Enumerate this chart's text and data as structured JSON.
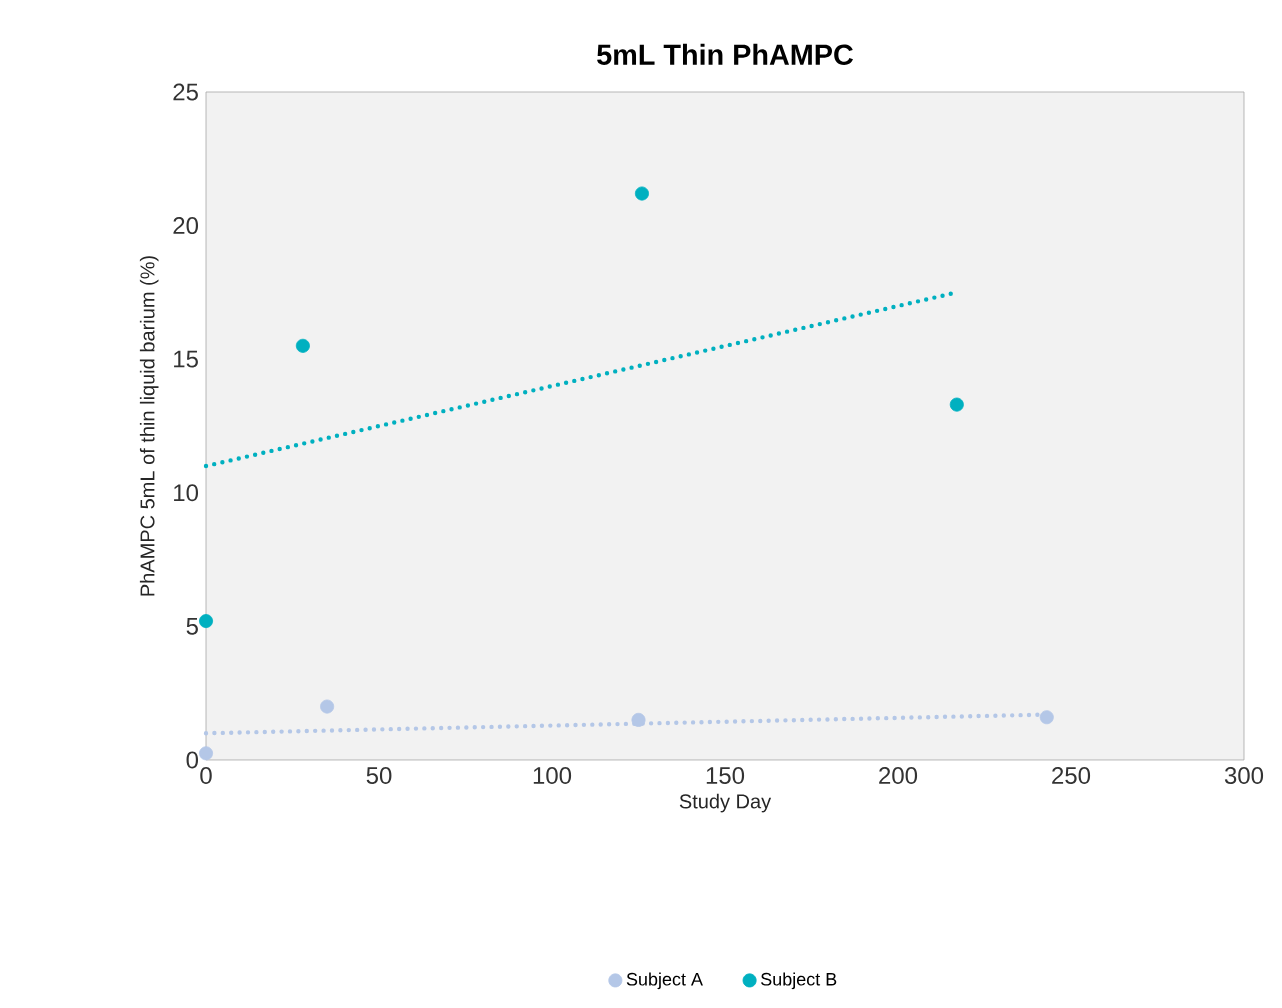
{
  "chart_data": {
    "type": "scatter",
    "title": "5mL Thin PhAMPC",
    "xlabel": "Study Day",
    "ylabel": "PhAMPC 5mL of thin liquid barium  (%)",
    "xlim": [
      0,
      300
    ],
    "ylim": [
      0,
      25
    ],
    "xticks": [
      0,
      50,
      100,
      150,
      200,
      250,
      300
    ],
    "yticks": [
      0,
      5,
      10,
      15,
      20,
      25
    ],
    "grid": false,
    "legend": "bottom",
    "marker": "circle",
    "series": [
      {
        "name": "Subject A",
        "color": "#b4c7e7",
        "x": [
          0,
          35,
          125,
          243
        ],
        "values": [
          0.25,
          2.0,
          1.5,
          1.6
        ]
      },
      {
        "name": "Subject B",
        "color": "#00b0c0",
        "x": [
          0,
          28,
          126,
          217
        ],
        "values": [
          5.2,
          15.5,
          21.2,
          13.3
        ]
      },
      {
        "type": "line",
        "color": "#b4c7e7",
        "x": [
          0,
          243
        ],
        "values": [
          1.0,
          1.7
        ],
        "line_style": "dotted",
        "marker": "none"
      },
      {
        "type": "line",
        "color": "#00b0c0",
        "x": [
          0,
          217
        ],
        "values": [
          11.0,
          17.5
        ],
        "line_style": "dotted",
        "marker": "none"
      }
    ]
  }
}
